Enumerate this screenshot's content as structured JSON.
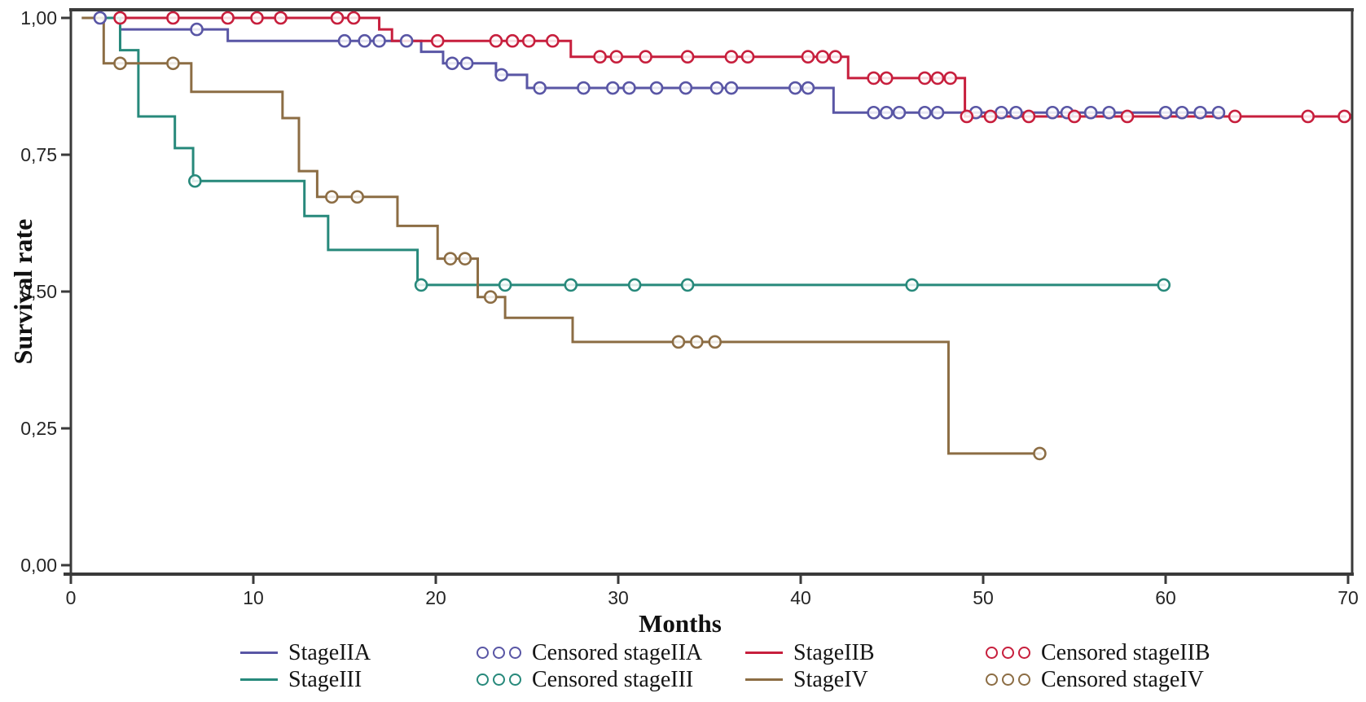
{
  "chart_data": {
    "type": "line",
    "subtype": "kaplan-meier-step",
    "title": "",
    "xlabel": "Months",
    "ylabel": "Survival rate",
    "xlim": [
      0,
      70
    ],
    "ylim": [
      0.0,
      1.0
    ],
    "grid": "off",
    "legend_position": "bottom",
    "frame_color": "#3a3a3a",
    "background_color": "#ffffff",
    "x_ticks": [
      {
        "month": 0,
        "label": "0"
      },
      {
        "month": 10,
        "label": "10"
      },
      {
        "month": 20,
        "label": "20"
      },
      {
        "month": 30,
        "label": "30"
      },
      {
        "month": 40,
        "label": "40"
      },
      {
        "month": 50,
        "label": "50"
      },
      {
        "month": 60,
        "label": "60"
      },
      {
        "month": 70,
        "label": "70"
      }
    ],
    "y_ticks": [
      {
        "value": 1.0,
        "label": "1,00"
      },
      {
        "value": 0.75,
        "label": "0,75"
      },
      {
        "value": 0.5,
        "label": "0,50"
      },
      {
        "value": 0.25,
        "label": "0,25"
      },
      {
        "value": 0.0,
        "label": "0,00"
      }
    ],
    "series": [
      {
        "name": "StageIIA",
        "color": "#5956a5",
        "steps": [
          [
            0.6,
            1.0
          ],
          [
            2.7,
            0.979
          ],
          [
            8.6,
            0.958
          ],
          [
            19.2,
            0.938
          ],
          [
            20.4,
            0.917
          ],
          [
            23.3,
            0.896
          ],
          [
            25.0,
            0.872
          ],
          [
            41.8,
            0.827
          ]
        ],
        "end_month": 63.2,
        "censored": [
          [
            1.6,
            1.0
          ],
          [
            6.9,
            0.979
          ],
          [
            15.0,
            0.958
          ],
          [
            16.1,
            0.958
          ],
          [
            16.9,
            0.958
          ],
          [
            18.4,
            0.958
          ],
          [
            20.9,
            0.917
          ],
          [
            21.7,
            0.917
          ],
          [
            23.6,
            0.896
          ],
          [
            25.7,
            0.872
          ],
          [
            28.1,
            0.872
          ],
          [
            29.7,
            0.872
          ],
          [
            30.6,
            0.872
          ],
          [
            32.1,
            0.872
          ],
          [
            33.7,
            0.872
          ],
          [
            35.4,
            0.872
          ],
          [
            36.2,
            0.872
          ],
          [
            39.7,
            0.872
          ],
          [
            40.4,
            0.872
          ],
          [
            44.0,
            0.827
          ],
          [
            44.7,
            0.827
          ],
          [
            45.4,
            0.827
          ],
          [
            46.8,
            0.827
          ],
          [
            47.5,
            0.827
          ],
          [
            49.6,
            0.827
          ],
          [
            51.0,
            0.827
          ],
          [
            51.8,
            0.827
          ],
          [
            53.8,
            0.827
          ],
          [
            54.6,
            0.827
          ],
          [
            55.9,
            0.827
          ],
          [
            56.9,
            0.827
          ],
          [
            60.0,
            0.827
          ],
          [
            60.9,
            0.827
          ],
          [
            61.9,
            0.827
          ],
          [
            62.9,
            0.827
          ]
        ]
      },
      {
        "name": "StageIIB",
        "color": "#c71f3d",
        "steps": [
          [
            0.6,
            1.0
          ],
          [
            16.9,
            0.979
          ],
          [
            17.6,
            0.958
          ],
          [
            27.4,
            0.929
          ],
          [
            42.6,
            0.89
          ],
          [
            49.0,
            0.82
          ]
        ],
        "end_month": 69.9,
        "censored": [
          [
            2.7,
            1.0
          ],
          [
            5.6,
            1.0
          ],
          [
            8.6,
            1.0
          ],
          [
            10.2,
            1.0
          ],
          [
            11.5,
            1.0
          ],
          [
            14.6,
            1.0
          ],
          [
            15.5,
            1.0
          ],
          [
            20.1,
            0.958
          ],
          [
            23.3,
            0.958
          ],
          [
            24.2,
            0.958
          ],
          [
            25.1,
            0.958
          ],
          [
            26.4,
            0.958
          ],
          [
            29.0,
            0.929
          ],
          [
            29.9,
            0.929
          ],
          [
            31.5,
            0.929
          ],
          [
            33.8,
            0.929
          ],
          [
            36.2,
            0.929
          ],
          [
            37.1,
            0.929
          ],
          [
            40.4,
            0.929
          ],
          [
            41.2,
            0.929
          ],
          [
            41.9,
            0.929
          ],
          [
            44.0,
            0.89
          ],
          [
            44.7,
            0.89
          ],
          [
            46.8,
            0.89
          ],
          [
            47.5,
            0.89
          ],
          [
            48.2,
            0.89
          ],
          [
            49.1,
            0.82
          ],
          [
            50.4,
            0.82
          ],
          [
            52.5,
            0.82
          ],
          [
            55.0,
            0.82
          ],
          [
            57.9,
            0.82
          ],
          [
            63.8,
            0.82
          ],
          [
            67.8,
            0.82
          ],
          [
            69.8,
            0.82
          ]
        ]
      },
      {
        "name": "StageIII",
        "color": "#27897b",
        "steps": [
          [
            0.6,
            1.0
          ],
          [
            2.7,
            0.941
          ],
          [
            3.7,
            0.82
          ],
          [
            5.7,
            0.762
          ],
          [
            6.7,
            0.702
          ],
          [
            12.8,
            0.638
          ],
          [
            14.1,
            0.576
          ],
          [
            19.0,
            0.512
          ]
        ],
        "end_month": 60.0,
        "censored": [
          [
            6.8,
            0.702
          ],
          [
            19.2,
            0.512
          ],
          [
            23.8,
            0.512
          ],
          [
            27.4,
            0.512
          ],
          [
            30.9,
            0.512
          ],
          [
            33.8,
            0.512
          ],
          [
            46.1,
            0.512
          ],
          [
            59.9,
            0.512
          ]
        ]
      },
      {
        "name": "StageIV",
        "color": "#8c6d44",
        "steps": [
          [
            0.6,
            1.0
          ],
          [
            1.8,
            0.917
          ],
          [
            6.6,
            0.865
          ],
          [
            11.6,
            0.817
          ],
          [
            12.5,
            0.72
          ],
          [
            13.5,
            0.673
          ],
          [
            17.9,
            0.62
          ],
          [
            20.1,
            0.56
          ],
          [
            22.3,
            0.49
          ],
          [
            23.8,
            0.452
          ],
          [
            27.5,
            0.408
          ],
          [
            48.1,
            0.204
          ]
        ],
        "end_month": 53.2,
        "censored": [
          [
            2.7,
            0.917
          ],
          [
            5.6,
            0.917
          ],
          [
            14.3,
            0.673
          ],
          [
            15.7,
            0.673
          ],
          [
            20.8,
            0.56
          ],
          [
            21.6,
            0.56
          ],
          [
            23.0,
            0.49
          ],
          [
            33.3,
            0.408
          ],
          [
            34.3,
            0.408
          ],
          [
            35.3,
            0.408
          ],
          [
            53.1,
            0.204
          ]
        ]
      }
    ],
    "legend": [
      {
        "label": "StageIIA",
        "swatch": "line",
        "color": "#5956a5"
      },
      {
        "label": "Censored stageIIA",
        "swatch": "circles",
        "color": "#5956a5"
      },
      {
        "label": "StageIIB",
        "swatch": "line",
        "color": "#c71f3d"
      },
      {
        "label": "Censored stageIIB",
        "swatch": "circles",
        "color": "#c71f3d"
      },
      {
        "label": "StageIII",
        "swatch": "line",
        "color": "#27897b"
      },
      {
        "label": "Censored stageIII",
        "swatch": "circles",
        "color": "#27897b"
      },
      {
        "label": "StageIV",
        "swatch": "line",
        "color": "#8c6d44"
      },
      {
        "label": "Censored stageIV",
        "swatch": "circles",
        "color": "#8c6d44"
      }
    ]
  }
}
